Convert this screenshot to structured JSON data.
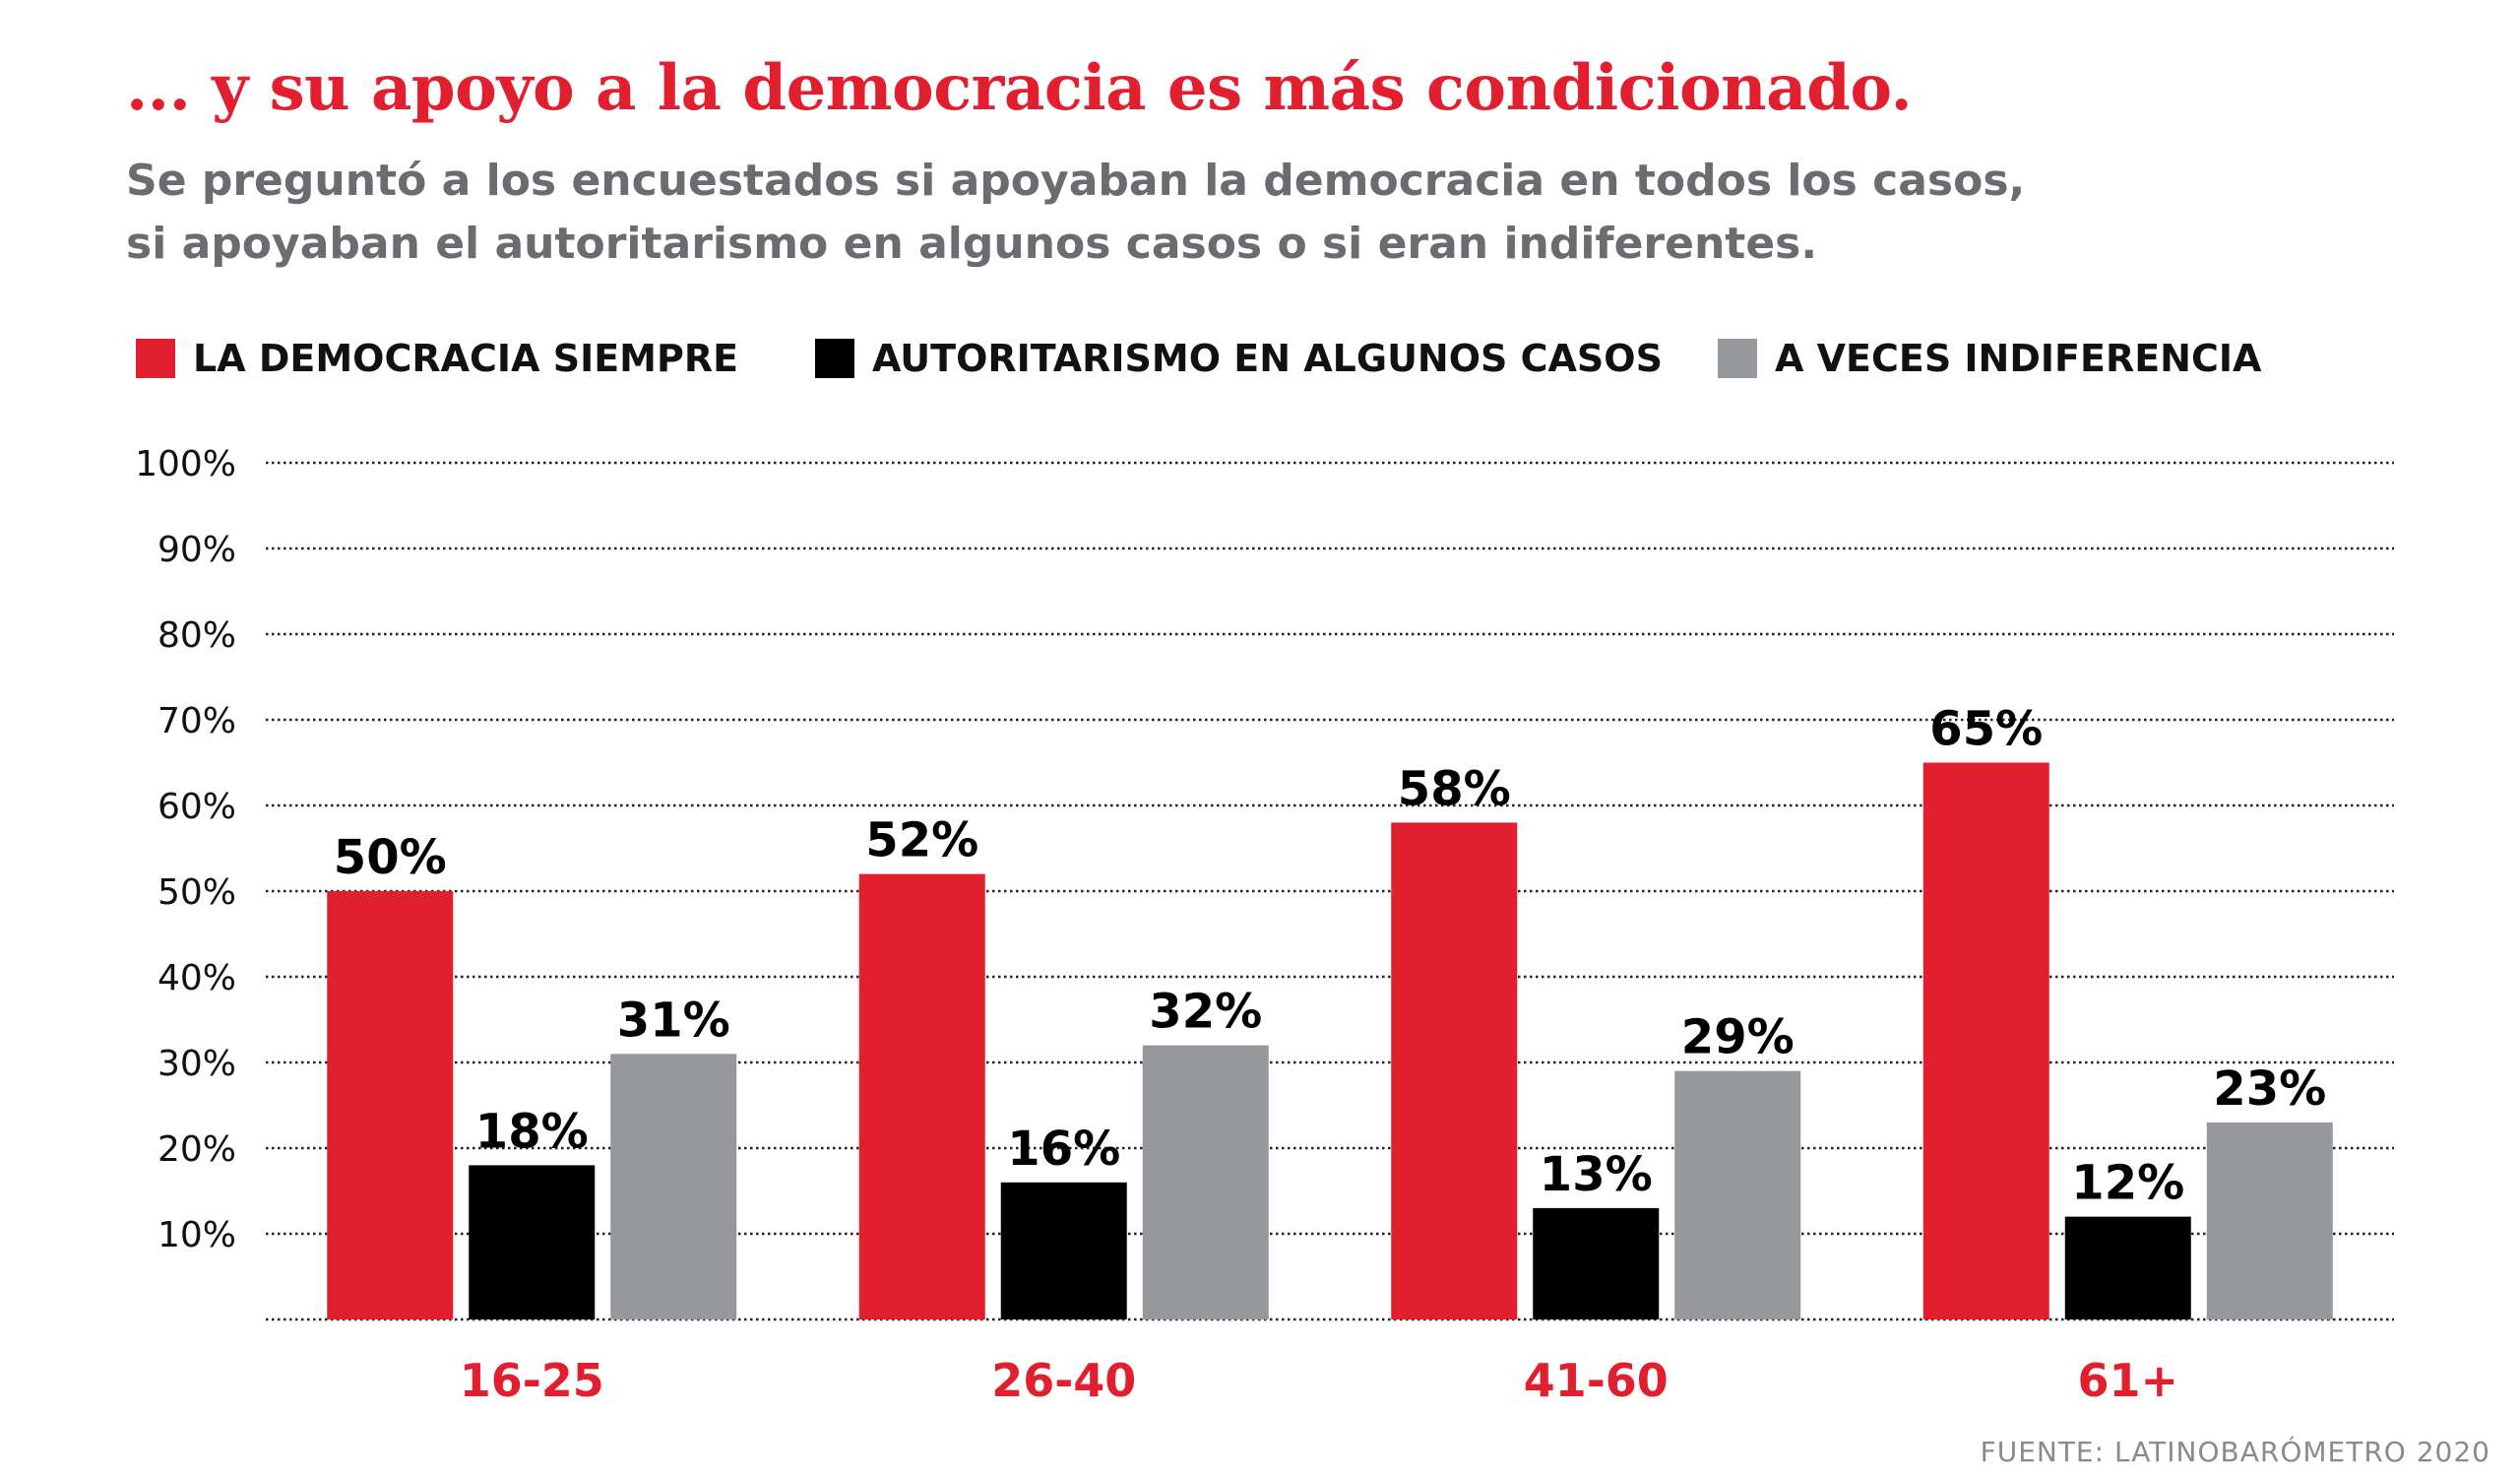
{
  "header": {
    "title": "... y su apoyo a la democracia es más condicionado.",
    "subtitle_lines": [
      "Se preguntó a los encuestados si apoyaban la democracia en todos los casos,",
      "si apoyaban el autoritarismo en algunos casos o si eran indiferentes."
    ]
  },
  "footer": {
    "source": "FUENTE: LATINOBARÓMETRO 2020"
  },
  "chart_data": {
    "type": "bar",
    "categories": [
      "16-25",
      "26-40",
      "41-60",
      "61+"
    ],
    "series": [
      {
        "name": "LA DEMOCRACIA SIEMPRE",
        "color": "#e21f2e",
        "values": [
          50,
          52,
          58,
          65
        ]
      },
      {
        "name": "AUTORITARISMO EN ALGUNOS CASOS",
        "color": "#000000",
        "values": [
          18,
          16,
          13,
          12
        ]
      },
      {
        "name": "A VECES INDIFERENCIA",
        "color": "#97989b",
        "values": [
          31,
          32,
          29,
          23
        ]
      }
    ],
    "value_labels": [
      [
        "50%",
        "52%",
        "58%",
        "65%"
      ],
      [
        "18%",
        "16%",
        "13%",
        "12%"
      ],
      [
        "31%",
        "32%",
        "29%",
        "23%"
      ]
    ],
    "ylim": [
      0,
      100
    ],
    "yticks": [
      10,
      20,
      30,
      40,
      50,
      60,
      70,
      80,
      90,
      100
    ],
    "ytick_labels": [
      "10%",
      "20%",
      "30%",
      "40%",
      "50%",
      "60%",
      "70%",
      "80%",
      "90%",
      "100%"
    ],
    "grid": "dotted horizontal",
    "legend_position": "top-left",
    "category_label_color": "#e21f2e",
    "xlabel": "",
    "ylabel": ""
  }
}
